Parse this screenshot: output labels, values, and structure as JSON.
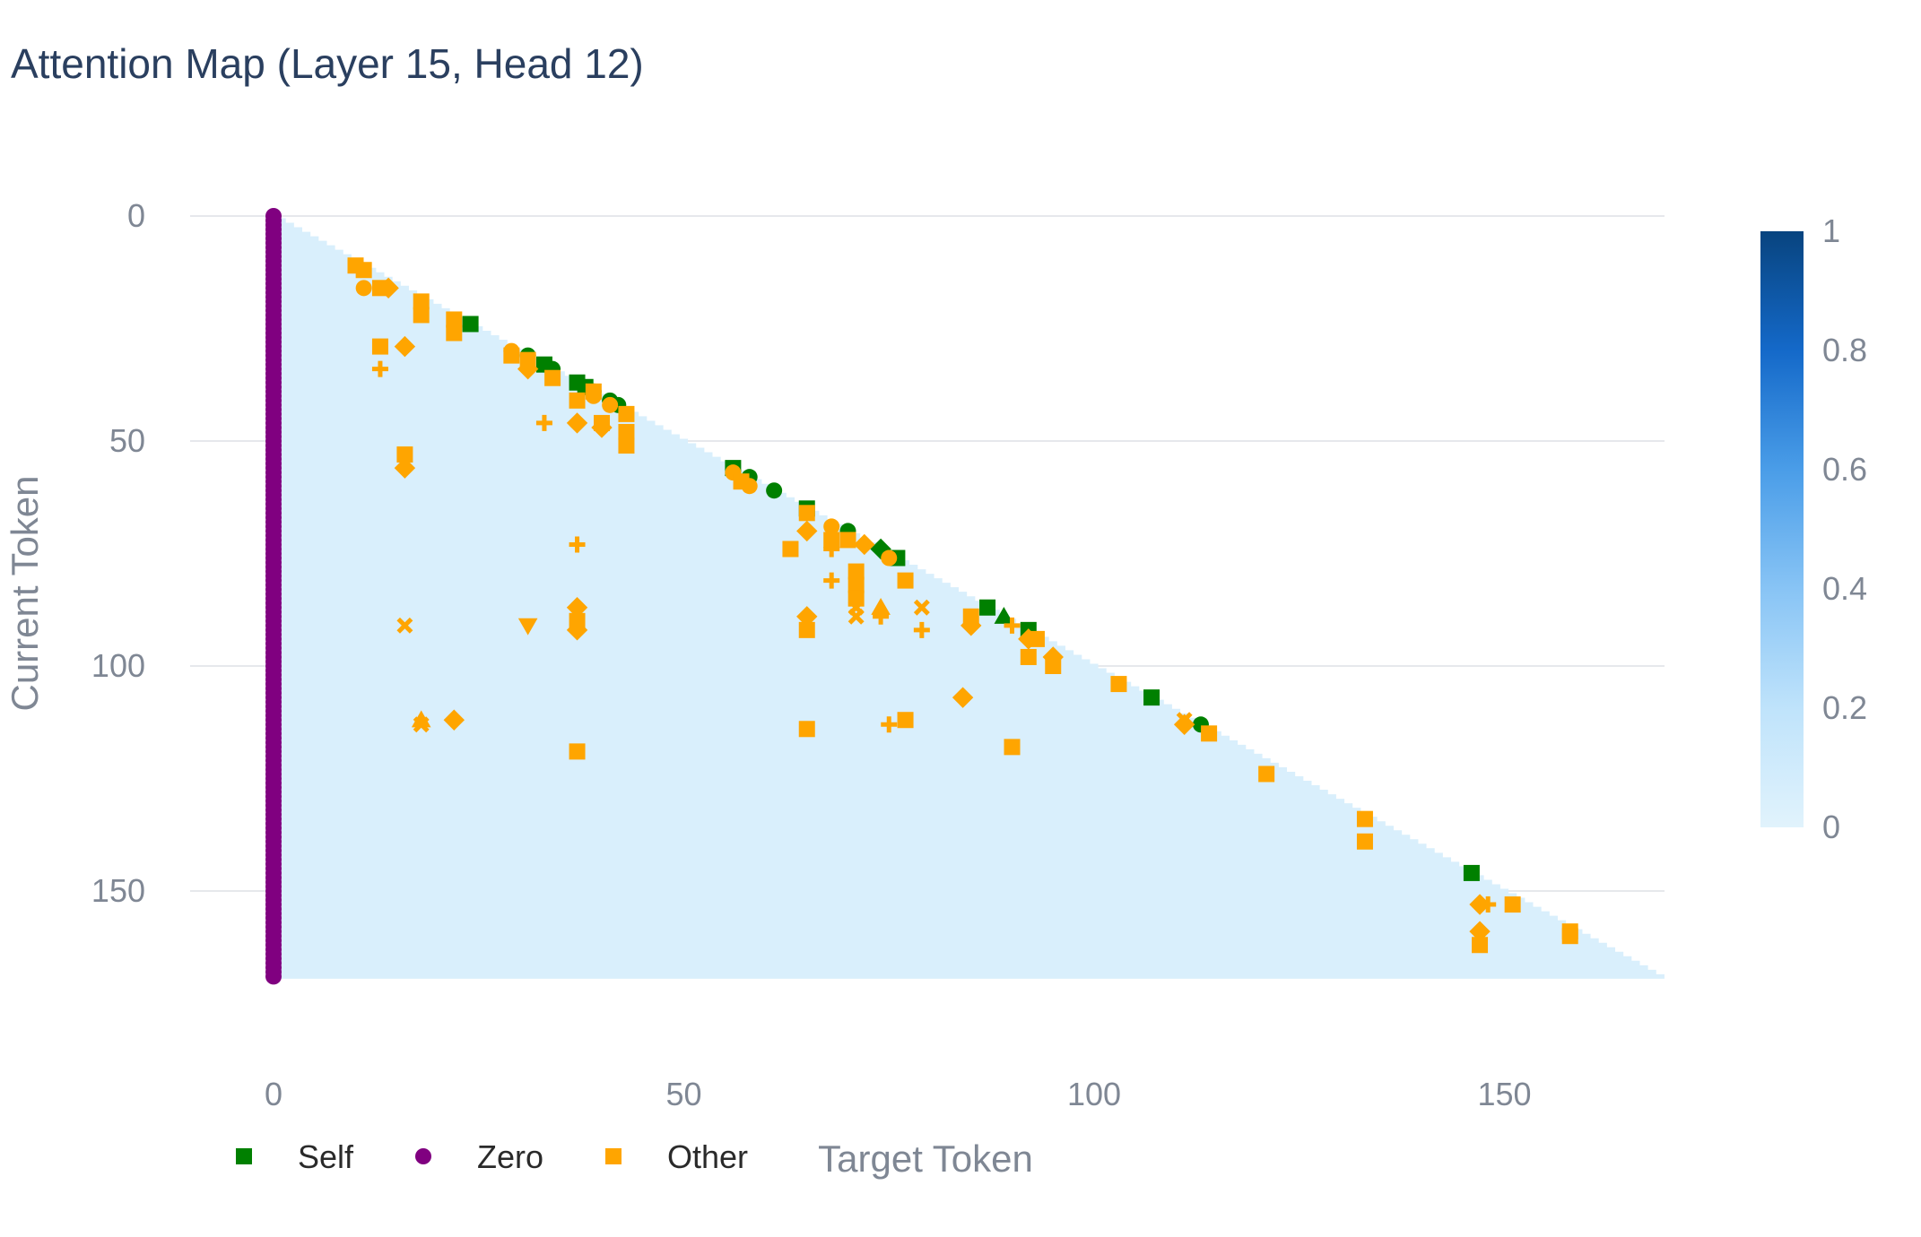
{
  "chart_data": {
    "type": "heatmap",
    "title": "Attention Map (Layer 15, Head 12)",
    "xlabel": "Target Token",
    "ylabel": "Current Token",
    "x_range": [
      -15,
      170
    ],
    "y_range": [
      0,
      170
    ],
    "n_tokens": 170,
    "x_ticks": [
      0,
      50,
      100,
      150
    ],
    "y_ticks": [
      0,
      50,
      100,
      150
    ],
    "grid": "horizontal",
    "colorscale": {
      "min": 0,
      "max": 1,
      "ticks": [
        0,
        0.2,
        0.4,
        0.6,
        0.8,
        1
      ],
      "tick_labels": [
        "0",
        "0.2",
        "0.4",
        "0.6",
        "0.8",
        "1"
      ],
      "colors": [
        "#e1f3fc",
        "#bfe3fb",
        "#88c4f5",
        "#4a9de8",
        "#1469c9",
        "#08447f"
      ]
    },
    "heatmap_base_value": 0.05,
    "legend": {
      "placement": "bottom-left",
      "items": [
        {
          "label": "Self",
          "color": "#008000",
          "symbol": "square"
        },
        {
          "label": "Zero",
          "color": "#800080",
          "symbol": "circle"
        },
        {
          "label": "Other",
          "color": "#ffa500",
          "symbol": "square"
        }
      ]
    },
    "series": [
      {
        "name": "Self",
        "color": "#008000",
        "points": [
          {
            "x": 24,
            "y": 24,
            "s": "square"
          },
          {
            "x": 31,
            "y": 31,
            "s": "circle"
          },
          {
            "x": 33,
            "y": 33,
            "s": "square"
          },
          {
            "x": 34,
            "y": 34,
            "s": "circle"
          },
          {
            "x": 37,
            "y": 37,
            "s": "square"
          },
          {
            "x": 38,
            "y": 38,
            "s": "square"
          },
          {
            "x": 39,
            "y": 39,
            "s": "circle"
          },
          {
            "x": 41,
            "y": 41,
            "s": "circle"
          },
          {
            "x": 42,
            "y": 42,
            "s": "circle"
          },
          {
            "x": 56,
            "y": 56,
            "s": "square"
          },
          {
            "x": 58,
            "y": 58,
            "s": "circle"
          },
          {
            "x": 61,
            "y": 61,
            "s": "circle"
          },
          {
            "x": 65,
            "y": 65,
            "s": "square"
          },
          {
            "x": 70,
            "y": 70,
            "s": "circle"
          },
          {
            "x": 74,
            "y": 74,
            "s": "diamond"
          },
          {
            "x": 76,
            "y": 76,
            "s": "square"
          },
          {
            "x": 87,
            "y": 87,
            "s": "square"
          },
          {
            "x": 89,
            "y": 89,
            "s": "triangle-up"
          },
          {
            "x": 92,
            "y": 92,
            "s": "square"
          },
          {
            "x": 107,
            "y": 107,
            "s": "square"
          },
          {
            "x": 113,
            "y": 113,
            "s": "circle"
          },
          {
            "x": 146,
            "y": 146,
            "s": "square"
          }
        ]
      },
      {
        "name": "Zero",
        "color": "#800080",
        "x": 0,
        "y_from": 0,
        "y_to": 169
      },
      {
        "name": "Other",
        "color": "#ffa500",
        "points": [
          {
            "x": 10,
            "y": 11,
            "s": "square"
          },
          {
            "x": 11,
            "y": 12,
            "s": "square"
          },
          {
            "x": 11,
            "y": 16,
            "s": "circle"
          },
          {
            "x": 13,
            "y": 16,
            "s": "square"
          },
          {
            "x": 14,
            "y": 16,
            "s": "diamond"
          },
          {
            "x": 18,
            "y": 19,
            "s": "square"
          },
          {
            "x": 18,
            "y": 22,
            "s": "square"
          },
          {
            "x": 22,
            "y": 23,
            "s": "square"
          },
          {
            "x": 22,
            "y": 26,
            "s": "square"
          },
          {
            "x": 13,
            "y": 29,
            "s": "square"
          },
          {
            "x": 16,
            "y": 29,
            "s": "diamond"
          },
          {
            "x": 29,
            "y": 30,
            "s": "circle"
          },
          {
            "x": 29,
            "y": 31,
            "s": "square"
          },
          {
            "x": 31,
            "y": 32,
            "s": "square"
          },
          {
            "x": 31,
            "y": 34,
            "s": "diamond"
          },
          {
            "x": 34,
            "y": 36,
            "s": "square"
          },
          {
            "x": 13,
            "y": 34,
            "s": "cross"
          },
          {
            "x": 39,
            "y": 39,
            "s": "square"
          },
          {
            "x": 37,
            "y": 41,
            "s": "square"
          },
          {
            "x": 39,
            "y": 40,
            "s": "circle"
          },
          {
            "x": 41,
            "y": 42,
            "s": "circle"
          },
          {
            "x": 43,
            "y": 44,
            "s": "square"
          },
          {
            "x": 33,
            "y": 46,
            "s": "cross"
          },
          {
            "x": 37,
            "y": 46,
            "s": "diamond"
          },
          {
            "x": 40,
            "y": 46,
            "s": "square"
          },
          {
            "x": 40,
            "y": 47,
            "s": "diamond"
          },
          {
            "x": 43,
            "y": 48,
            "s": "square"
          },
          {
            "x": 43,
            "y": 51,
            "s": "square"
          },
          {
            "x": 16,
            "y": 53,
            "s": "square"
          },
          {
            "x": 16,
            "y": 56,
            "s": "diamond"
          },
          {
            "x": 56,
            "y": 57,
            "s": "circle"
          },
          {
            "x": 57,
            "y": 59,
            "s": "square"
          },
          {
            "x": 58,
            "y": 60,
            "s": "circle"
          },
          {
            "x": 65,
            "y": 66,
            "s": "square"
          },
          {
            "x": 65,
            "y": 70,
            "s": "diamond"
          },
          {
            "x": 68,
            "y": 69,
            "s": "circle"
          },
          {
            "x": 68,
            "y": 72,
            "s": "square"
          },
          {
            "x": 70,
            "y": 72,
            "s": "square"
          },
          {
            "x": 72,
            "y": 73,
            "s": "diamond"
          },
          {
            "x": 63,
            "y": 74,
            "s": "square"
          },
          {
            "x": 68,
            "y": 74,
            "s": "cross"
          },
          {
            "x": 75,
            "y": 76,
            "s": "circle"
          },
          {
            "x": 37,
            "y": 73,
            "s": "cross"
          },
          {
            "x": 71,
            "y": 79,
            "s": "square"
          },
          {
            "x": 71,
            "y": 82,
            "s": "square"
          },
          {
            "x": 77,
            "y": 81,
            "s": "square"
          },
          {
            "x": 68,
            "y": 81,
            "s": "cross"
          },
          {
            "x": 71,
            "y": 85,
            "s": "square"
          },
          {
            "x": 37,
            "y": 87,
            "s": "diamond"
          },
          {
            "x": 71,
            "y": 87,
            "s": "x"
          },
          {
            "x": 74,
            "y": 87,
            "s": "triangle-up"
          },
          {
            "x": 79,
            "y": 87,
            "s": "x"
          },
          {
            "x": 65,
            "y": 89,
            "s": "diamond"
          },
          {
            "x": 37,
            "y": 90,
            "s": "square"
          },
          {
            "x": 71,
            "y": 89,
            "s": "x"
          },
          {
            "x": 74,
            "y": 89,
            "s": "cross"
          },
          {
            "x": 85,
            "y": 89,
            "s": "square"
          },
          {
            "x": 16,
            "y": 91,
            "s": "x"
          },
          {
            "x": 31,
            "y": 91,
            "s": "triangle-down"
          },
          {
            "x": 65,
            "y": 92,
            "s": "square"
          },
          {
            "x": 37,
            "y": 92,
            "s": "diamond"
          },
          {
            "x": 79,
            "y": 92,
            "s": "cross"
          },
          {
            "x": 85,
            "y": 91,
            "s": "diamond"
          },
          {
            "x": 90,
            "y": 91,
            "s": "cross"
          },
          {
            "x": 92,
            "y": 94,
            "s": "diamond"
          },
          {
            "x": 93,
            "y": 94,
            "s": "square"
          },
          {
            "x": 92,
            "y": 98,
            "s": "square"
          },
          {
            "x": 95,
            "y": 98,
            "s": "diamond"
          },
          {
            "x": 95,
            "y": 100,
            "s": "square"
          },
          {
            "x": 103,
            "y": 104,
            "s": "square"
          },
          {
            "x": 84,
            "y": 107,
            "s": "diamond"
          },
          {
            "x": 18,
            "y": 113,
            "s": "x"
          },
          {
            "x": 18,
            "y": 112,
            "s": "triangle-up"
          },
          {
            "x": 22,
            "y": 112,
            "s": "diamond"
          },
          {
            "x": 75,
            "y": 113,
            "s": "cross"
          },
          {
            "x": 77,
            "y": 112,
            "s": "square"
          },
          {
            "x": 111,
            "y": 112,
            "s": "x"
          },
          {
            "x": 111,
            "y": 113,
            "s": "diamond"
          },
          {
            "x": 114,
            "y": 115,
            "s": "square"
          },
          {
            "x": 65,
            "y": 114,
            "s": "square"
          },
          {
            "x": 90,
            "y": 118,
            "s": "square"
          },
          {
            "x": 37,
            "y": 119,
            "s": "square"
          },
          {
            "x": 121,
            "y": 124,
            "s": "square"
          },
          {
            "x": 133,
            "y": 134,
            "s": "square"
          },
          {
            "x": 133,
            "y": 139,
            "s": "square"
          },
          {
            "x": 147,
            "y": 153,
            "s": "diamond"
          },
          {
            "x": 148,
            "y": 153,
            "s": "cross"
          },
          {
            "x": 151,
            "y": 153,
            "s": "square"
          },
          {
            "x": 147,
            "y": 159,
            "s": "diamond"
          },
          {
            "x": 147,
            "y": 162,
            "s": "square"
          },
          {
            "x": 158,
            "y": 159,
            "s": "square"
          },
          {
            "x": 158,
            "y": 160,
            "s": "square"
          }
        ]
      }
    ]
  }
}
